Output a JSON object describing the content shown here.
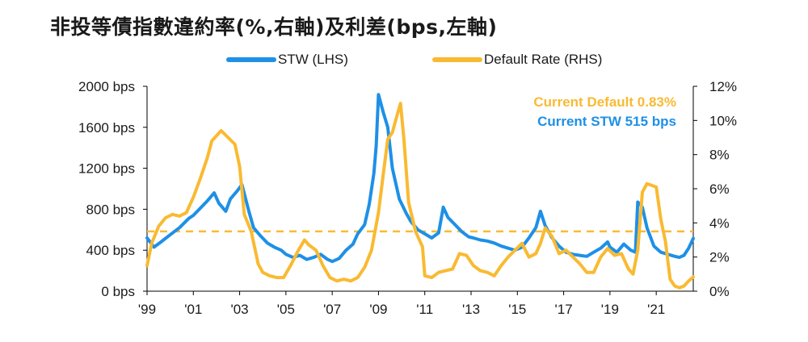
{
  "title": "非投等債指數違約率(%,右軸)及利差(bps,左軸)",
  "legend": [
    {
      "label": "STW (LHS)",
      "color": "#1E90E6"
    },
    {
      "label": "Default Rate (RHS)",
      "color": "#F9BA32"
    }
  ],
  "annotations": {
    "current_default": "Current Default 0.83%",
    "current_stw": "Current STW 515 bps"
  },
  "chart_data": {
    "type": "line",
    "title": "非投等債指數違約率(%,右軸)及利差(bps,左軸)",
    "xlabel": "",
    "x_ticks": [
      {
        "year": 1999,
        "label": "'99"
      },
      {
        "year": 2001,
        "label": "'01"
      },
      {
        "year": 2003,
        "label": "'03"
      },
      {
        "year": 2005,
        "label": "'05"
      },
      {
        "year": 2007,
        "label": "'07"
      },
      {
        "year": 2009,
        "label": "'09"
      },
      {
        "year": 2011,
        "label": "'11"
      },
      {
        "year": 2013,
        "label": "'13"
      },
      {
        "year": 2015,
        "label": "'15"
      },
      {
        "year": 2017,
        "label": "'17"
      },
      {
        "year": 2019,
        "label": "'19"
      },
      {
        "year": 2021,
        "label": "'21"
      }
    ],
    "xlim": [
      1999,
      2022.6
    ],
    "left_axis": {
      "label": "",
      "ylim": [
        0,
        2000
      ],
      "ticks": [
        {
          "value": 0,
          "label": "0 bps"
        },
        {
          "value": 400,
          "label": "400 bps"
        },
        {
          "value": 800,
          "label": "800 bps"
        },
        {
          "value": 1200,
          "label": "1200 bps"
        },
        {
          "value": 1600,
          "label": "1600 bps"
        },
        {
          "value": 2000,
          "label": "2000 bps"
        }
      ]
    },
    "right_axis": {
      "label": "",
      "ylim": [
        0,
        12
      ],
      "ticks": [
        {
          "value": 0,
          "label": "0%"
        },
        {
          "value": 2,
          "label": "2%"
        },
        {
          "value": 4,
          "label": "4%"
        },
        {
          "value": 6,
          "label": "6%"
        },
        {
          "value": 8,
          "label": "8%"
        },
        {
          "value": 10,
          "label": "10%"
        },
        {
          "value": 12,
          "label": "12%"
        }
      ]
    },
    "reference_line": {
      "axis": "right",
      "value": 3.5,
      "style": "dashed",
      "color": "#F9BA32"
    },
    "grid": false,
    "series": [
      {
        "name": "STW (LHS)",
        "axis": "left",
        "color": "#1E90E6",
        "x": [
          1999.0,
          1999.3,
          1999.6,
          2000.0,
          2000.4,
          2000.8,
          2001.0,
          2001.3,
          2001.6,
          2001.9,
          2002.1,
          2002.4,
          2002.6,
          2002.9,
          2003.1,
          2003.4,
          2003.6,
          2003.9,
          2004.2,
          2004.5,
          2004.8,
          2005.0,
          2005.3,
          2005.6,
          2005.9,
          2006.2,
          2006.5,
          2006.8,
          2007.0,
          2007.3,
          2007.6,
          2007.9,
          2008.1,
          2008.4,
          2008.6,
          2008.8,
          2008.9,
          2009.0,
          2009.2,
          2009.4,
          2009.6,
          2009.9,
          2010.2,
          2010.4,
          2010.7,
          2011.0,
          2011.3,
          2011.6,
          2011.8,
          2012.0,
          2012.3,
          2012.6,
          2012.9,
          2013.1,
          2013.4,
          2013.7,
          2014.0,
          2014.3,
          2014.6,
          2014.9,
          2015.2,
          2015.5,
          2015.8,
          2016.0,
          2016.2,
          2016.5,
          2016.8,
          2017.1,
          2017.4,
          2017.7,
          2018.0,
          2018.3,
          2018.6,
          2018.9,
          2019.0,
          2019.3,
          2019.6,
          2019.9,
          2020.1,
          2020.2,
          2020.4,
          2020.6,
          2020.9,
          2021.2,
          2021.5,
          2021.8,
          2022.0,
          2022.2,
          2022.4,
          2022.6
        ],
        "y": [
          520,
          430,
          480,
          550,
          620,
          710,
          740,
          810,
          880,
          960,
          860,
          780,
          900,
          980,
          1040,
          780,
          620,
          540,
          470,
          430,
          400,
          360,
          330,
          350,
          310,
          330,
          360,
          310,
          290,
          320,
          400,
          460,
          560,
          650,
          850,
          1150,
          1420,
          1920,
          1750,
          1600,
          1200,
          900,
          760,
          680,
          600,
          560,
          520,
          570,
          820,
          720,
          650,
          580,
          530,
          520,
          500,
          490,
          470,
          440,
          420,
          400,
          430,
          520,
          620,
          780,
          640,
          520,
          440,
          380,
          360,
          350,
          340,
          380,
          420,
          480,
          430,
          380,
          460,
          400,
          380,
          870,
          820,
          620,
          440,
          380,
          360,
          340,
          330,
          350,
          420,
          515
        ]
      },
      {
        "name": "Default Rate (RHS)",
        "axis": "right",
        "color": "#F9BA32",
        "x": [
          1999.0,
          1999.2,
          1999.5,
          1999.8,
          2000.1,
          2000.4,
          2000.7,
          2001.0,
          2001.3,
          2001.6,
          2001.8,
          2002.0,
          2002.2,
          2002.5,
          2002.8,
          2003.0,
          2003.2,
          2003.5,
          2003.8,
          2004.0,
          2004.3,
          2004.6,
          2004.9,
          2005.2,
          2005.5,
          2005.8,
          2006.0,
          2006.3,
          2006.6,
          2006.9,
          2007.2,
          2007.5,
          2007.8,
          2008.1,
          2008.4,
          2008.7,
          2009.0,
          2009.2,
          2009.4,
          2009.6,
          2009.8,
          2009.95,
          2010.1,
          2010.3,
          2010.6,
          2010.9,
          2011.0,
          2011.3,
          2011.6,
          2011.9,
          2012.2,
          2012.5,
          2012.8,
          2013.1,
          2013.4,
          2013.7,
          2014.0,
          2014.3,
          2014.6,
          2014.9,
          2015.2,
          2015.5,
          2015.8,
          2016.0,
          2016.2,
          2016.5,
          2016.8,
          2017.1,
          2017.4,
          2017.7,
          2018.0,
          2018.3,
          2018.6,
          2018.9,
          2019.2,
          2019.5,
          2019.8,
          2020.0,
          2020.2,
          2020.4,
          2020.6,
          2020.8,
          2021.0,
          2021.2,
          2021.4,
          2021.6,
          2021.8,
          2022.0,
          2022.2,
          2022.4,
          2022.6
        ],
        "y": [
          1.5,
          2.8,
          3.8,
          4.3,
          4.5,
          4.4,
          4.6,
          5.5,
          6.6,
          7.8,
          8.8,
          9.1,
          9.4,
          9.0,
          8.6,
          7.3,
          4.5,
          3.5,
          1.6,
          1.1,
          0.9,
          0.8,
          0.8,
          1.5,
          2.3,
          3.0,
          2.7,
          2.4,
          1.5,
          0.8,
          0.6,
          0.7,
          0.6,
          0.8,
          1.4,
          2.4,
          4.6,
          6.8,
          8.9,
          9.3,
          10.3,
          11.0,
          8.9,
          5.2,
          3.5,
          2.6,
          0.9,
          0.8,
          1.1,
          1.2,
          1.3,
          2.2,
          2.1,
          1.5,
          1.2,
          1.1,
          0.9,
          1.5,
          2.0,
          2.4,
          2.8,
          2.0,
          2.2,
          2.8,
          3.7,
          3.2,
          2.2,
          2.4,
          2.0,
          1.6,
          1.1,
          1.1,
          2.0,
          2.5,
          2.1,
          2.2,
          1.3,
          1.0,
          2.4,
          5.8,
          6.3,
          6.2,
          6.1,
          4.2,
          2.9,
          0.7,
          0.3,
          0.2,
          0.3,
          0.6,
          0.83
        ]
      }
    ]
  }
}
